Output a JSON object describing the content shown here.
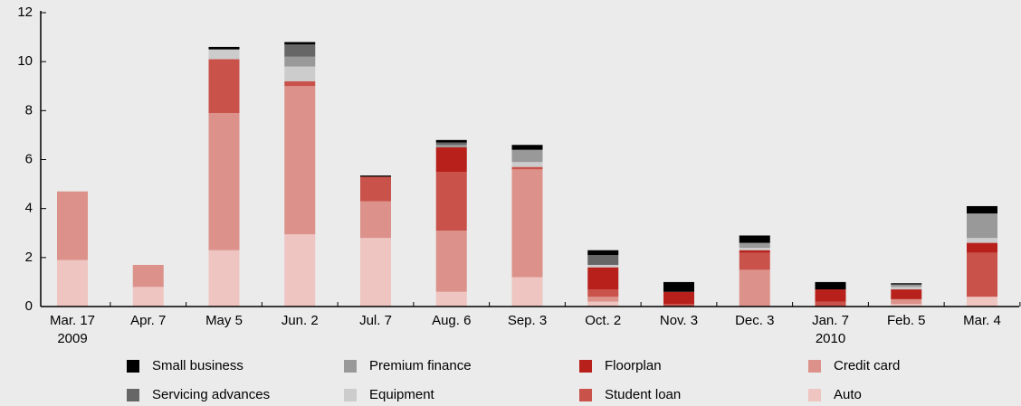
{
  "chart_data": {
    "type": "stacked_bar",
    "categories": [
      "Mar. 17",
      "Apr. 7",
      "May 5",
      "Jun. 2",
      "Jul. 7",
      "Aug. 6",
      "Sep. 3",
      "Oct. 2",
      "Nov. 3",
      "Dec. 3",
      "Jan. 7",
      "Feb. 5",
      "Mar. 4"
    ],
    "sub_labels": [
      "2009",
      null,
      null,
      null,
      null,
      null,
      null,
      null,
      null,
      null,
      "2010",
      null,
      null
    ],
    "series": [
      {
        "name": "Auto",
        "color": "#efc5c2",
        "values": [
          1.9,
          0.8,
          2.3,
          2.95,
          2.8,
          0.6,
          1.2,
          0.2,
          0,
          0,
          0,
          0.1,
          0.4
        ]
      },
      {
        "name": "Credit card",
        "color": "#dc928a",
        "values": [
          2.8,
          0.9,
          5.6,
          6.05,
          1.5,
          2.5,
          4.4,
          0.2,
          0,
          1.5,
          0,
          0.2,
          0
        ]
      },
      {
        "name": "Student loan",
        "color": "#c9524b",
        "values": [
          0,
          0,
          2.2,
          0.2,
          1.0,
          2.4,
          0.1,
          0.3,
          0.1,
          0.7,
          0.2,
          0,
          1.8
        ]
      },
      {
        "name": "Floorplan",
        "color": "#b8211b",
        "values": [
          0,
          0,
          0,
          0,
          0,
          1.0,
          0,
          0.9,
          0.5,
          0.1,
          0.5,
          0.4,
          0.4
        ]
      },
      {
        "name": "Equipment",
        "color": "#cccccc",
        "values": [
          0,
          0,
          0.4,
          0.6,
          0,
          0,
          0.2,
          0.1,
          0,
          0.1,
          0,
          0.1,
          0.2
        ]
      },
      {
        "name": "Premium finance",
        "color": "#999999",
        "values": [
          0,
          0,
          0,
          0.4,
          0,
          0.1,
          0.5,
          0,
          0,
          0.2,
          0,
          0.1,
          1.0
        ]
      },
      {
        "name": "Servicing advances",
        "color": "#666666",
        "values": [
          0,
          0,
          0,
          0.5,
          0,
          0.1,
          0,
          0.4,
          0,
          0,
          0,
          0,
          0
        ]
      },
      {
        "name": "Small business",
        "color": "#000000",
        "values": [
          0,
          0,
          0.1,
          0.1,
          0.05,
          0.1,
          0.2,
          0.2,
          0.4,
          0.3,
          0.3,
          0.05,
          0.3
        ]
      }
    ],
    "ylim": [
      0,
      12
    ],
    "yticks": [
      0,
      2,
      4,
      6,
      8,
      10,
      12
    ]
  }
}
